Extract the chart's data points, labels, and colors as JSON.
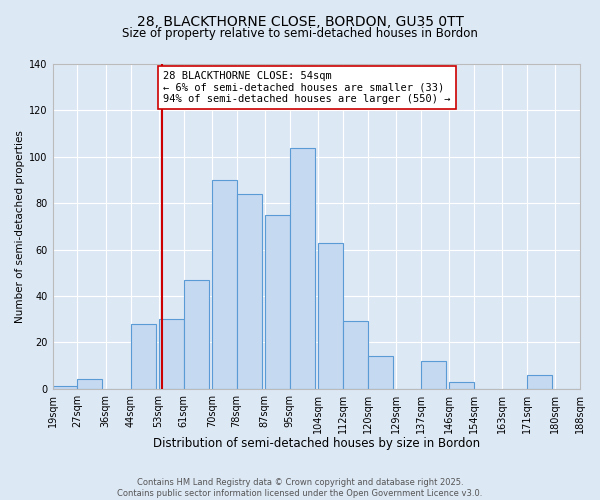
{
  "title": "28, BLACKTHORNE CLOSE, BORDON, GU35 0TT",
  "subtitle": "Size of property relative to semi-detached houses in Bordon",
  "xlabel": "Distribution of semi-detached houses by size in Bordon",
  "ylabel": "Number of semi-detached properties",
  "bar_left_edges": [
    19,
    27,
    36,
    44,
    53,
    61,
    70,
    78,
    87,
    95,
    104,
    112,
    120,
    129,
    137,
    146,
    154,
    163,
    171,
    180
  ],
  "bar_heights": [
    1,
    4,
    0,
    28,
    30,
    47,
    90,
    84,
    75,
    104,
    63,
    29,
    14,
    0,
    12,
    3,
    0,
    0,
    6,
    0
  ],
  "bin_width": 8,
  "tick_labels": [
    "19sqm",
    "27sqm",
    "36sqm",
    "44sqm",
    "53sqm",
    "61sqm",
    "70sqm",
    "78sqm",
    "87sqm",
    "95sqm",
    "104sqm",
    "112sqm",
    "120sqm",
    "129sqm",
    "137sqm",
    "146sqm",
    "154sqm",
    "163sqm",
    "171sqm",
    "180sqm",
    "188sqm"
  ],
  "tick_positions": [
    19,
    27,
    36,
    44,
    53,
    61,
    70,
    78,
    87,
    95,
    104,
    112,
    120,
    129,
    137,
    146,
    154,
    163,
    171,
    180,
    188
  ],
  "ylim": [
    0,
    140
  ],
  "yticks": [
    0,
    20,
    40,
    60,
    80,
    100,
    120,
    140
  ],
  "bar_color": "#c5d9f1",
  "bar_edge_color": "#5b9bd5",
  "background_color": "#dde8f5",
  "grid_color": "#ffffff",
  "vline_x": 54,
  "vline_color": "#cc0000",
  "annotation_text": "28 BLACKTHORNE CLOSE: 54sqm\n← 6% of semi-detached houses are smaller (33)\n94% of semi-detached houses are larger (550) →",
  "annotation_box_color": "#ffffff",
  "annotation_box_edge": "#cc0000",
  "footer_line1": "Contains HM Land Registry data © Crown copyright and database right 2025.",
  "footer_line2": "Contains public sector information licensed under the Open Government Licence v3.0.",
  "title_fontsize": 10,
  "subtitle_fontsize": 8.5,
  "xlabel_fontsize": 8.5,
  "ylabel_fontsize": 7.5,
  "tick_fontsize": 7,
  "annotation_fontsize": 7.5,
  "footer_fontsize": 6
}
